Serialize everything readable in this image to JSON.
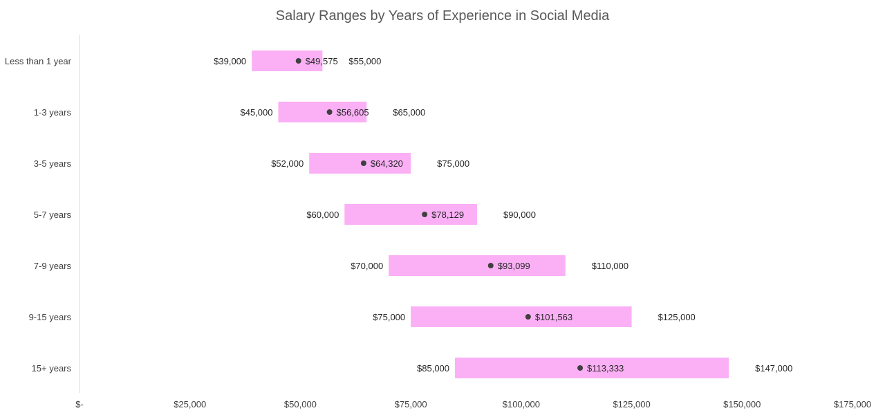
{
  "chart_data": {
    "type": "bar",
    "title": "Salary Ranges by Years of Experience in Social Media",
    "categories": [
      "Less than 1 year",
      "1-3 years",
      "3-5 years",
      "5-7 years",
      "7-9 years",
      "9-15 years",
      "15+ years"
    ],
    "series": [
      {
        "values": [
          39000,
          45000,
          52000,
          60000,
          70000,
          75000,
          85000
        ]
      },
      {
        "values": [
          55000,
          65000,
          75000,
          90000,
          110000,
          125000,
          147000
        ]
      },
      {
        "values": [
          49575,
          56605,
          64320,
          78129,
          93099,
          101563,
          113333
        ]
      }
    ],
    "min_labels": [
      "$39,000",
      "$45,000",
      "$52,000",
      "$60,000",
      "$70,000",
      "$75,000",
      "$85,000"
    ],
    "max_labels": [
      "$55,000",
      "$65,000",
      "$75,000",
      "$90,000",
      "$110,000",
      "$125,000",
      "$147,000"
    ],
    "avg_labels": [
      "$49,575",
      "$56,605",
      "$64,320",
      "$78,129",
      "$93,099",
      "$101,563",
      "$113,333"
    ],
    "xlim": [
      0,
      175000
    ],
    "x_ticks": [
      0,
      25000,
      50000,
      75000,
      100000,
      125000,
      150000,
      175000
    ],
    "x_tick_labels": [
      "$-",
      "$25,000",
      "$50,000",
      "$75,000",
      "$100,000",
      "$125,000",
      "$150,000",
      "$175,000"
    ],
    "xlabel": "",
    "ylabel": "",
    "grid": false,
    "colors": {
      "range_bar": "#fbb0f6",
      "marker": "#404040",
      "axis": "#d9d9d9",
      "title": "#595959",
      "text": "#404040"
    }
  }
}
